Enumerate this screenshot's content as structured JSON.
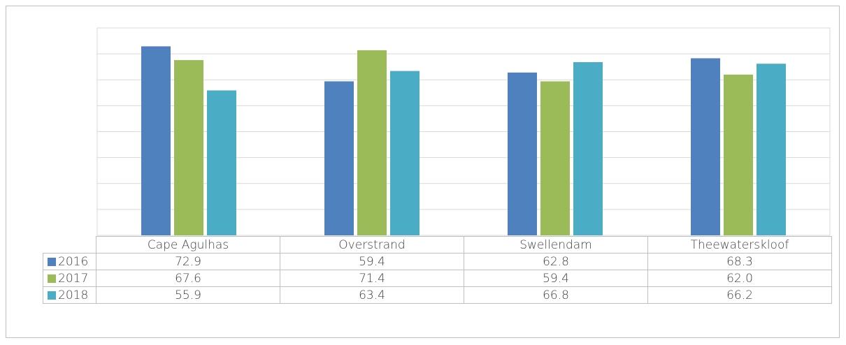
{
  "chart_data": {
    "type": "bar",
    "title": "",
    "xlabel": "",
    "ylabel": "",
    "categories": [
      "Cape Agulhas",
      "Overstrand",
      "Swellendam",
      "Theewaterskloof"
    ],
    "series": [
      {
        "name": "2016",
        "color": "#4e81bd",
        "values": [
          72.9,
          59.4,
          62.8,
          68.3
        ],
        "labels": [
          "72.9",
          "59.4",
          "62.8",
          "68.3"
        ]
      },
      {
        "name": "2017",
        "color": "#9bbb59",
        "values": [
          67.6,
          71.4,
          59.4,
          62.0
        ],
        "labels": [
          "67.6",
          "71.4",
          "59.4",
          "62.0"
        ]
      },
      {
        "name": "2018",
        "color": "#4bacc6",
        "values": [
          55.9,
          63.4,
          66.8,
          66.2
        ],
        "labels": [
          "55.9",
          "63.4",
          "66.8",
          "66.2"
        ]
      }
    ],
    "ylim": [
      0,
      80
    ],
    "grid": true,
    "legend": "data-table"
  }
}
